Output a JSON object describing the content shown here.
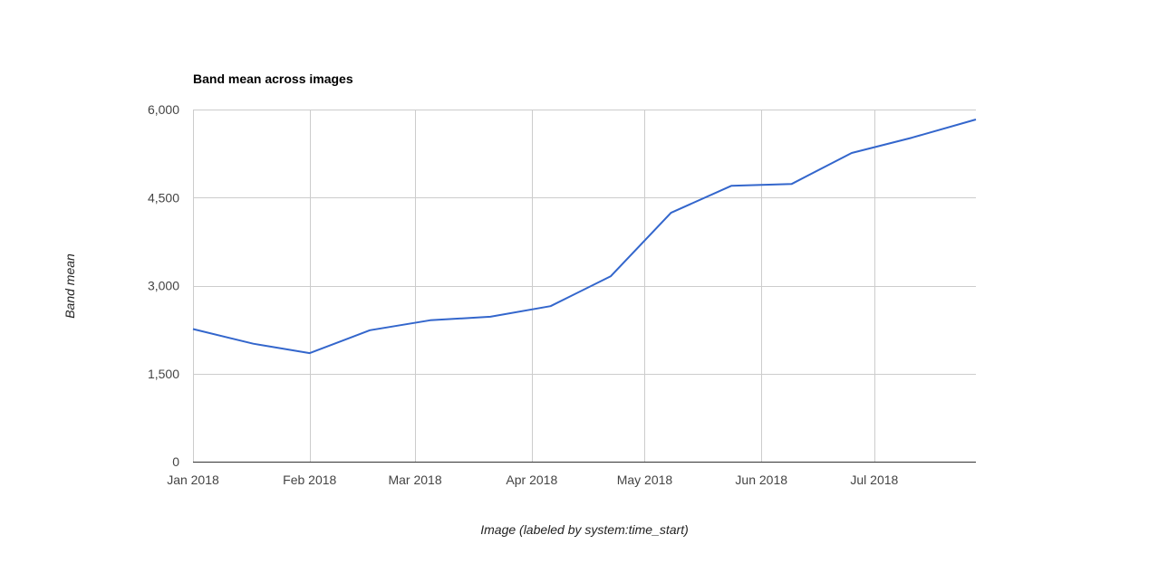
{
  "chart_data": {
    "type": "line",
    "title": "Band mean across images",
    "xlabel": "Image (labeled by system:time_start)",
    "ylabel": "Band mean",
    "ylim": [
      0,
      6000
    ],
    "y_ticks": [
      0,
      1500,
      3000,
      4500,
      6000
    ],
    "y_tick_labels": [
      "0",
      "1,500",
      "3,000",
      "4,500",
      "6,000"
    ],
    "x_ticks": [
      {
        "day": 0,
        "label": "Jan 2018"
      },
      {
        "day": 31,
        "label": "Feb 2018"
      },
      {
        "day": 59,
        "label": "Mar 2018"
      },
      {
        "day": 90,
        "label": "Apr 2018"
      },
      {
        "day": 120,
        "label": "May 2018"
      },
      {
        "day": 151,
        "label": "Jun 2018"
      },
      {
        "day": 181,
        "label": "Jul 2018"
      }
    ],
    "xlim_days": [
      0,
      208
    ],
    "grid": true,
    "series": [
      {
        "name": "Band mean",
        "color": "#3366cc",
        "x_days": [
          0,
          16,
          31,
          47,
          63,
          79,
          95,
          111,
          127,
          143,
          159,
          175,
          191,
          208
        ],
        "values": [
          2260,
          2010,
          1850,
          2240,
          2410,
          2470,
          2650,
          3160,
          4240,
          4700,
          4730,
          5260,
          5520,
          5830
        ]
      }
    ]
  }
}
